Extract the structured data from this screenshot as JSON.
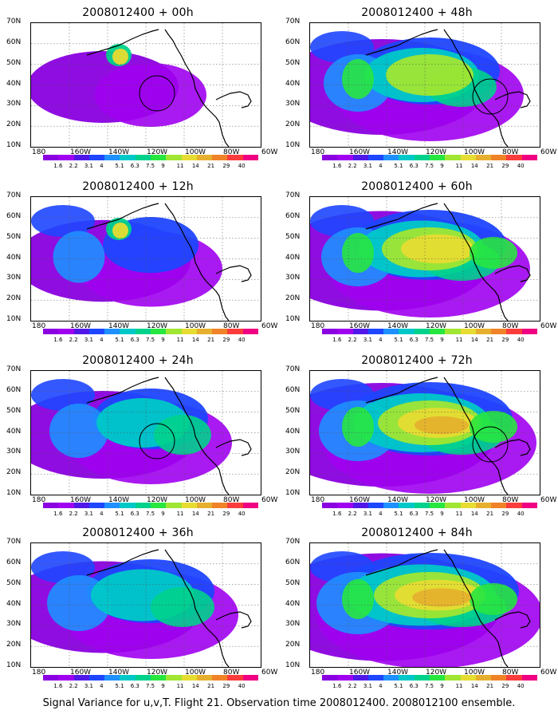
{
  "footer_caption": "Signal Variance for u,v,T. Flight 21. Observation time 2008012400. 2008012100 ensemble.",
  "lat_labels": [
    "70N",
    "60N",
    "50N",
    "40N",
    "30N",
    "20N",
    "10N"
  ],
  "lon_labels": [
    "180",
    "160W",
    "140W",
    "120W",
    "100W",
    "80W",
    "60W"
  ],
  "colorbar": {
    "labels": [
      "1.6",
      "2.2",
      "3.1",
      "4",
      "5.1",
      "6.3",
      "7.5",
      "9",
      "11",
      "14",
      "21",
      "29",
      "40"
    ],
    "colors": [
      "#8a00e0",
      "#a000f0",
      "#5018e8",
      "#1e46ff",
      "#1e90ff",
      "#00c8c8",
      "#00d28c",
      "#28e640",
      "#a0e632",
      "#e6dc32",
      "#e6af2d",
      "#f08228",
      "#fa3c3c",
      "#f00082"
    ]
  },
  "panels": [
    {
      "id": "p00",
      "title": "2008012400 + 00h",
      "col": 0,
      "row": 0,
      "level": 0.0,
      "circle": true,
      "circle_pos": "west"
    },
    {
      "id": "p12",
      "title": "2008012400 + 12h",
      "col": 0,
      "row": 1,
      "level": 0.25,
      "circle": false
    },
    {
      "id": "p24",
      "title": "2008012400 + 24h",
      "col": 0,
      "row": 2,
      "level": 0.4,
      "circle": true,
      "circle_pos": "west"
    },
    {
      "id": "p36",
      "title": "2008012400 + 36h",
      "col": 0,
      "row": 3,
      "level": 0.5,
      "circle": false
    },
    {
      "id": "p48",
      "title": "2008012400 + 48h",
      "col": 1,
      "row": 0,
      "level": 0.6,
      "circle": true,
      "circle_pos": "east"
    },
    {
      "id": "p60",
      "title": "2008012400 + 60h",
      "col": 1,
      "row": 1,
      "level": 0.7,
      "circle": false
    },
    {
      "id": "p72",
      "title": "2008012400 + 72h",
      "col": 1,
      "row": 2,
      "level": 0.8,
      "circle": true,
      "circle_pos": "east"
    },
    {
      "id": "p84",
      "title": "2008012400 + 84h",
      "col": 1,
      "row": 3,
      "level": 0.9,
      "circle": false
    }
  ]
}
